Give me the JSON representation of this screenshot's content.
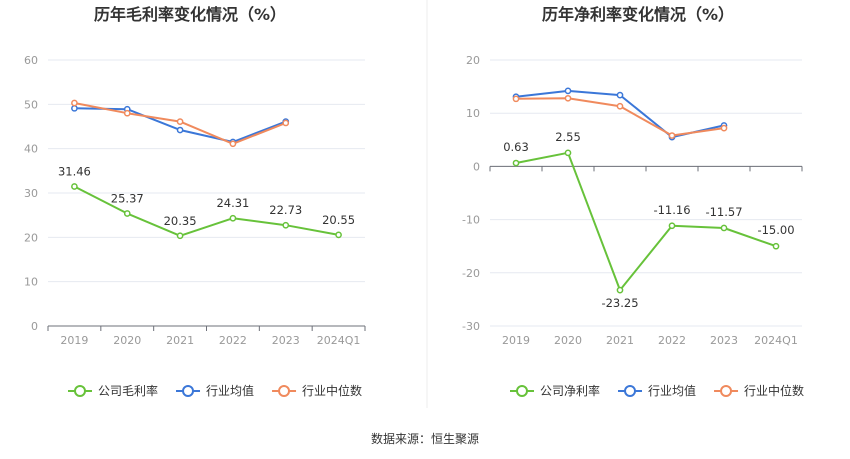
{
  "source_text": "数据来源：恒生聚源",
  "colors": {
    "company": "#67c23a",
    "industry_avg": "#3b77d8",
    "industry_median": "#f08a5d"
  },
  "chart_data": [
    {
      "type": "line",
      "title": "历年毛利率变化情况（%）",
      "categories": [
        "2019",
        "2020",
        "2021",
        "2022",
        "2023",
        "2024Q1"
      ],
      "ylim": [
        0,
        60
      ],
      "yticks": [
        0,
        10,
        20,
        30,
        40,
        50,
        60
      ],
      "grid": true,
      "legend_position": "bottom",
      "series": [
        {
          "name": "公司毛利率",
          "values": [
            31.46,
            25.37,
            20.35,
            24.31,
            22.73,
            20.55
          ],
          "labels": [
            "31.46",
            "25.37",
            "20.35",
            "24.31",
            "22.73",
            "20.55"
          ]
        },
        {
          "name": "行业均值",
          "values": [
            49.1,
            48.9,
            44.2,
            41.5,
            46.1,
            null
          ]
        },
        {
          "name": "行业中位数",
          "values": [
            50.3,
            48.0,
            46.1,
            41.1,
            45.8,
            null
          ]
        }
      ]
    },
    {
      "type": "line",
      "title": "历年净利率变化情况（%）",
      "categories": [
        "2019",
        "2020",
        "2021",
        "2022",
        "2023",
        "2024Q1"
      ],
      "ylim": [
        -30,
        20
      ],
      "yticks": [
        -30,
        -20,
        -10,
        0,
        10,
        20
      ],
      "grid": true,
      "legend_position": "bottom",
      "series": [
        {
          "name": "公司净利率",
          "values": [
            0.63,
            2.55,
            -23.25,
            -11.16,
            -11.57,
            -15.0
          ],
          "labels": [
            "0.63",
            "2.55",
            "-23.25",
            "-11.16",
            "-11.57",
            "-15.00"
          ]
        },
        {
          "name": "行业均值",
          "values": [
            13.1,
            14.2,
            13.4,
            5.5,
            7.7,
            null
          ]
        },
        {
          "name": "行业中位数",
          "values": [
            12.7,
            12.8,
            11.3,
            5.8,
            7.2,
            null
          ]
        }
      ]
    }
  ]
}
